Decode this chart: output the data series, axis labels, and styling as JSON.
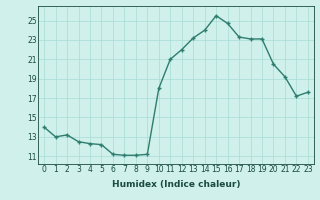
{
  "x": [
    0,
    1,
    2,
    3,
    4,
    5,
    6,
    7,
    8,
    9,
    10,
    11,
    12,
    13,
    14,
    15,
    16,
    17,
    18,
    19,
    20,
    21,
    22,
    23
  ],
  "y": [
    14.0,
    13.0,
    13.2,
    12.5,
    12.3,
    12.2,
    11.2,
    11.1,
    11.1,
    11.2,
    18.0,
    21.0,
    22.0,
    23.2,
    24.0,
    25.5,
    24.7,
    23.3,
    23.1,
    23.1,
    20.5,
    19.2,
    17.2,
    17.6
  ],
  "line_color": "#2e7d6e",
  "marker": "+",
  "bg_color": "#cff0eb",
  "grid_color": "#a8ddd7",
  "xlabel": "Humidex (Indice chaleur)",
  "yticks": [
    11,
    13,
    15,
    17,
    19,
    21,
    23,
    25
  ],
  "xticks": [
    0,
    1,
    2,
    3,
    4,
    5,
    6,
    7,
    8,
    9,
    10,
    11,
    12,
    13,
    14,
    15,
    16,
    17,
    18,
    19,
    20,
    21,
    22,
    23
  ],
  "ylim": [
    10.2,
    26.5
  ],
  "xlim": [
    -0.5,
    23.5
  ],
  "font_color": "#1a4a40",
  "label_fontsize": 6.5,
  "tick_fontsize": 5.5,
  "linewidth": 1.0,
  "markersize": 3.5,
  "markeredgewidth": 1.0
}
